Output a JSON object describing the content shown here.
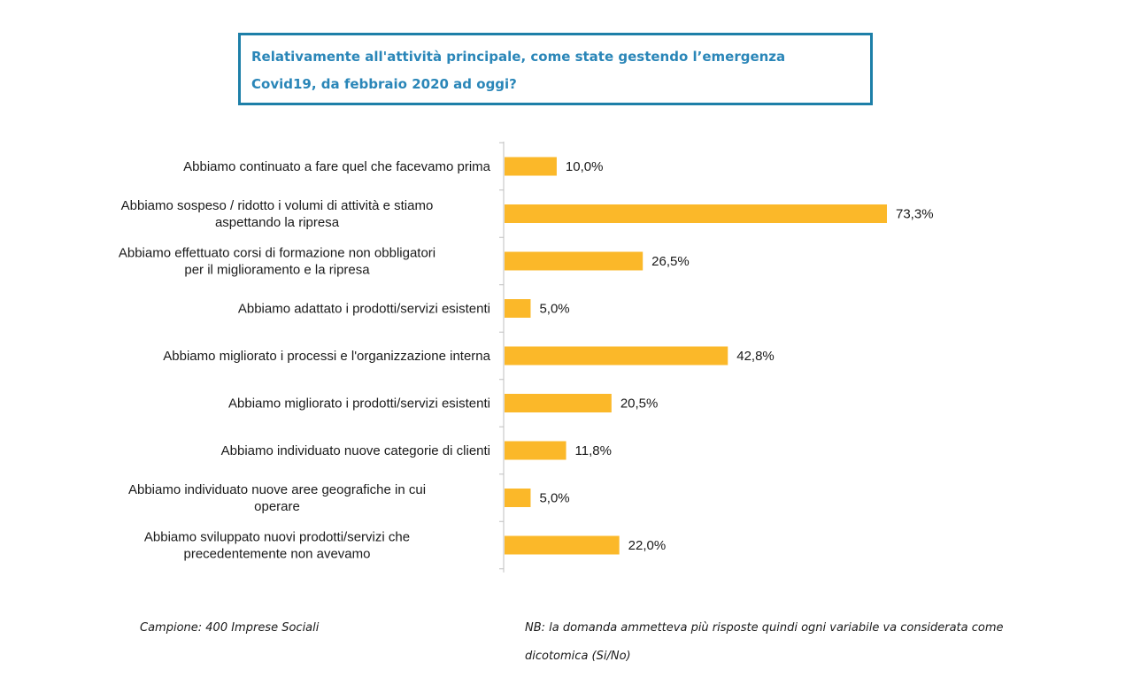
{
  "title": {
    "line1": "Relativamente all'attività principale, come state gestendo l’emergenza",
    "line2": "Covid19, da febbraio 2020 ad oggi?"
  },
  "colors": {
    "bar": "#FBB829",
    "title": "#2A86B8",
    "title_border": "#1D7FA8",
    "axis": "#BFBFBF"
  },
  "chart_data": {
    "type": "bar",
    "orientation": "horizontal",
    "categories": [
      [
        "Abbiamo continuato a fare quel che facevamo prima"
      ],
      [
        "Abbiamo sospeso / ridotto i volumi di attività e stiamo",
        "aspettando la ripresa"
      ],
      [
        "Abbiamo effettuato corsi di formazione non obbligatori",
        "per il miglioramento e la ripresa"
      ],
      [
        "Abbiamo adattato i prodotti/servizi esistenti"
      ],
      [
        "Abbiamo migliorato i processi e l'organizzazione interna"
      ],
      [
        "Abbiamo migliorato i prodotti/servizi esistenti"
      ],
      [
        "Abbiamo individuato nuove categorie di clienti"
      ],
      [
        "Abbiamo individuato nuove aree geografiche in cui",
        "operare"
      ],
      [
        "Abbiamo sviluppato nuovi prodotti/servizi che",
        "precedentemente non avevamo"
      ]
    ],
    "values": [
      10.0,
      73.3,
      26.5,
      5.0,
      42.8,
      20.5,
      11.8,
      5.0,
      22.0
    ],
    "value_labels": [
      "10,0%",
      "73,3%",
      "26,5%",
      "5,0%",
      "42,8%",
      "20,5%",
      "11,8%",
      "5,0%",
      "22,0%"
    ],
    "xlim": [
      0,
      73.3
    ],
    "grid": false,
    "legend": "none"
  },
  "footer": {
    "sample": "Campione: 400 Imprese Sociali",
    "note_line1": "NB: la domanda ammetteva più risposte quindi ogni variabile va considerata come",
    "note_line2": "dicotomica (Si/No)"
  }
}
